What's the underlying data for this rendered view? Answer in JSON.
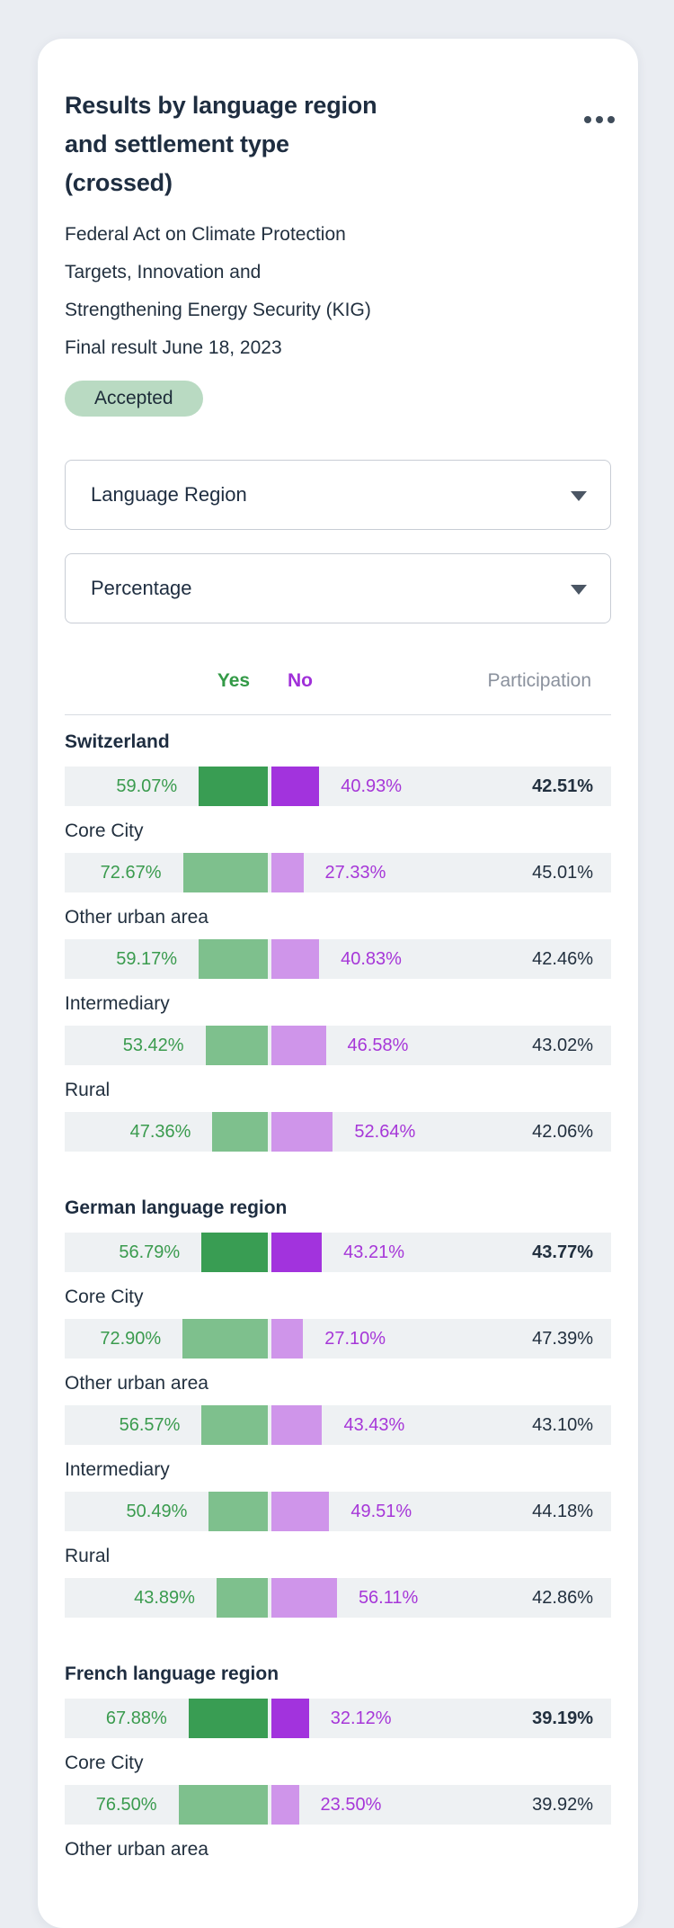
{
  "card": {
    "title_lines": [
      "Results by language region",
      "and settlement type",
      "(crossed)"
    ],
    "subtitle_lines": [
      "Federal Act on Climate Protection",
      "Targets, Innovation and",
      "Strengthening Energy Security (KIG)",
      "Final result June 18, 2023"
    ],
    "status_badge": "Accepted",
    "menu_icon": "ellipsis-icon",
    "filters": [
      {
        "value": "Language Region"
      },
      {
        "value": "Percentage"
      }
    ],
    "table": {
      "col_yes": "Yes",
      "col_no": "No",
      "col_participation": "Participation",
      "sections": [
        {
          "label": "Switzerland",
          "yes": "59.07%",
          "no": "40.93%",
          "participation": "42.51%",
          "rows": [
            {
              "label": "Core City",
              "yes": "72.67%",
              "no": "27.33%",
              "participation": "45.01%"
            },
            {
              "label": "Other urban area",
              "yes": "59.17%",
              "no": "40.83%",
              "participation": "42.46%"
            },
            {
              "label": "Intermediary",
              "yes": "53.42%",
              "no": "46.58%",
              "participation": "43.02%"
            },
            {
              "label": "Rural",
              "yes": "47.36%",
              "no": "52.64%",
              "participation": "42.06%"
            }
          ]
        },
        {
          "label": "German language region",
          "yes": "56.79%",
          "no": "43.21%",
          "participation": "43.77%",
          "rows": [
            {
              "label": "Core City",
              "yes": "72.90%",
              "no": "27.10%",
              "participation": "47.39%"
            },
            {
              "label": "Other urban area",
              "yes": "56.57%",
              "no": "43.43%",
              "participation": "43.10%"
            },
            {
              "label": "Intermediary",
              "yes": "50.49%",
              "no": "49.51%",
              "participation": "44.18%"
            },
            {
              "label": "Rural",
              "yes": "43.89%",
              "no": "56.11%",
              "participation": "42.86%"
            }
          ]
        },
        {
          "label": "French language region",
          "yes": "67.88%",
          "no": "32.12%",
          "participation": "39.19%",
          "rows": [
            {
              "label": "Core City",
              "yes": "76.50%",
              "no": "23.50%",
              "participation": "39.92%"
            },
            {
              "label": "Other urban area"
            }
          ]
        }
      ]
    },
    "colors": {
      "page_background": "#eaedf2",
      "card_background": "#ffffff",
      "text_dark": "#1e2d40",
      "yes_green_dark": "#399d53",
      "yes_green_light": "#7ec08d",
      "yes_text": "#3a9b4e",
      "no_purple_dark": "#a233dd",
      "no_purple_light": "#cf95ea",
      "no_text": "#a637d8",
      "participation_header": "#8a919d",
      "row_background": "#eef1f3",
      "badge_background": "#b9dac2"
    }
  }
}
